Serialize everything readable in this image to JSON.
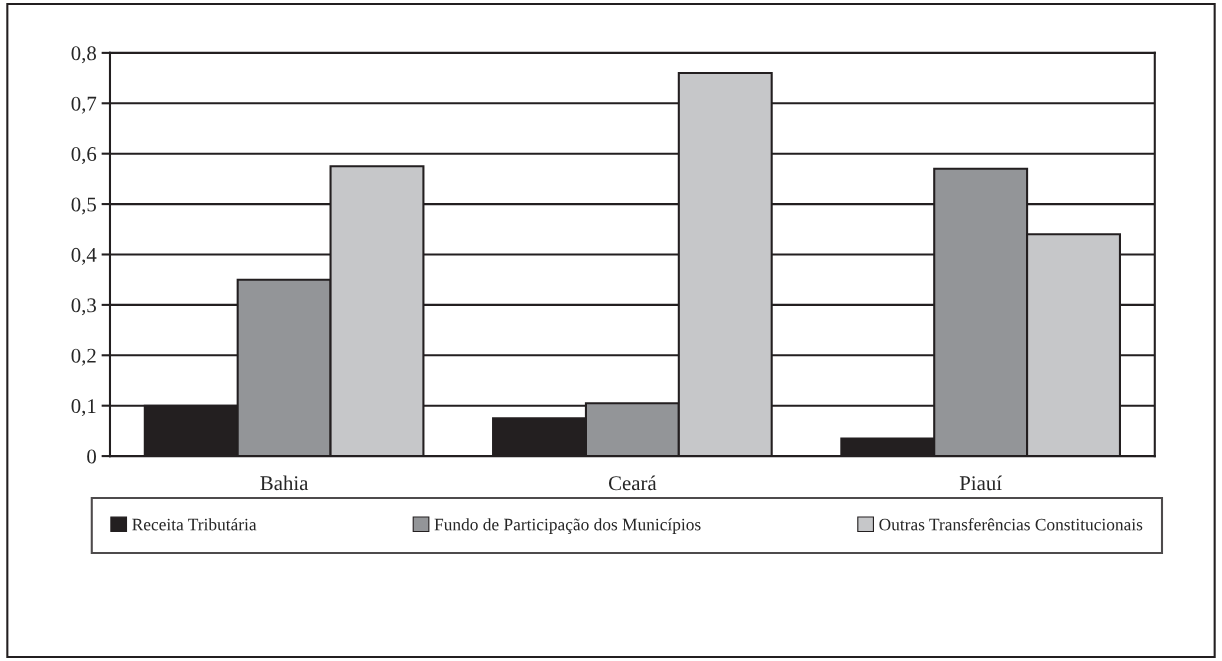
{
  "chart_data": {
    "type": "bar",
    "categories": [
      "Bahia",
      "Ceará",
      "Piauí"
    ],
    "series": [
      {
        "name": "Receita Tributária",
        "color": "#231f20",
        "values": [
          0.1,
          0.075,
          0.035
        ]
      },
      {
        "name": "Fundo de Participação dos Municípios",
        "color": "#939598",
        "values": [
          0.35,
          0.105,
          0.57
        ]
      },
      {
        "name": "Outras Transferências Constitucionais",
        "color": "#c6c7c9",
        "values": [
          0.575,
          0.76,
          0.44
        ]
      }
    ],
    "ylim": [
      0,
      0.8
    ],
    "yticks": [
      {
        "value": 0,
        "label": "0"
      },
      {
        "value": 0.1,
        "label": "0,1"
      },
      {
        "value": 0.2,
        "label": "0,2"
      },
      {
        "value": 0.3,
        "label": "0,3"
      },
      {
        "value": 0.4,
        "label": "0,4"
      },
      {
        "value": 0.5,
        "label": "0,5"
      },
      {
        "value": 0.6,
        "label": "0,6"
      },
      {
        "value": 0.7,
        "label": "0,7"
      },
      {
        "value": 0.8,
        "label": "0,8"
      }
    ],
    "grid": "y",
    "legend": "bottom"
  }
}
